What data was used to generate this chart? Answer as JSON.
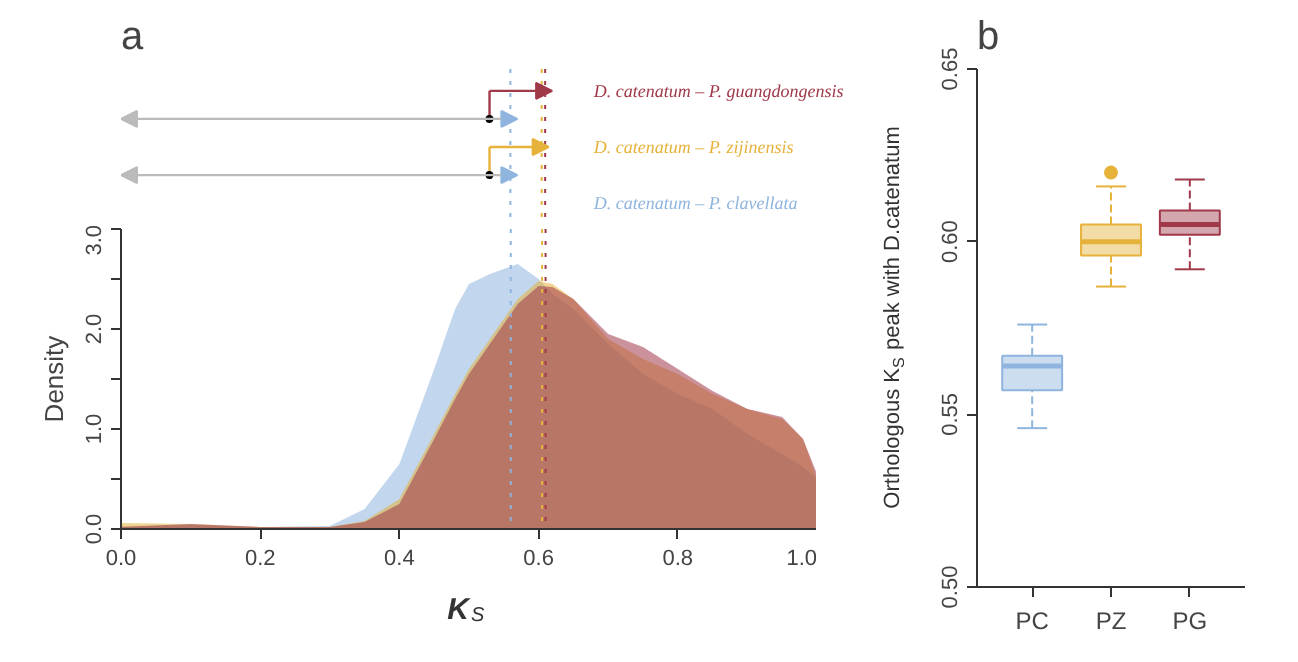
{
  "chart_data": [
    {
      "type": "area",
      "title": "a",
      "xlabel": "K$_{S}$",
      "ylabel": "Density",
      "grid": false,
      "x": [
        0,
        0.1,
        0.2,
        0.3,
        0.35,
        0.4,
        0.45,
        0.48,
        0.5,
        0.53,
        0.57,
        0.6,
        0.62,
        0.65,
        0.7,
        0.75,
        0.8,
        0.85,
        0.9,
        0.95,
        0.98,
        1.0
      ],
      "xlim": [
        0,
        1
      ],
      "xticks": [
        {
          "value": 0,
          "label": "0.0"
        },
        0.2,
        0.4,
        0.6,
        0.8,
        {
          "value": 1,
          "label": "1.0"
        }
      ],
      "ylim": [
        0,
        3
      ],
      "yticks": [
        {
          "value": 0,
          "label": "0.0"
        },
        {
          "value": 0.5,
          "label": null
        },
        {
          "value": 1,
          "label": "1.0"
        },
        {
          "value": 1.5,
          "label": null
        },
        {
          "value": 2,
          "label": "2.0"
        },
        {
          "value": 2.5,
          "label": null
        },
        {
          "value": 3,
          "label": "3.0"
        }
      ],
      "series": [
        {
          "name": "D. catenatum – P. guangdongensis",
          "color": "#a0394a",
          "values": [
            0.02,
            0.05,
            0.02,
            0.02,
            0.07,
            0.25,
            0.9,
            1.3,
            1.55,
            1.85,
            2.25,
            2.43,
            2.42,
            2.3,
            1.95,
            1.82,
            1.6,
            1.38,
            1.2,
            1.12,
            0.9,
            0.55
          ]
        },
        {
          "name": "D. catenatum – P. zijinensis",
          "color": "#e6b23a",
          "values": [
            0.06,
            0.05,
            0.02,
            0.02,
            0.08,
            0.3,
            0.95,
            1.35,
            1.6,
            1.9,
            2.3,
            2.48,
            2.45,
            2.3,
            1.9,
            1.7,
            1.55,
            1.35,
            1.2,
            1.1,
            0.9,
            0.5
          ]
        },
        {
          "name": "D. catenatum – P. clavellata",
          "color": "#8fb4de",
          "values": [
            0.03,
            0.04,
            0.02,
            0.03,
            0.2,
            0.65,
            1.6,
            2.2,
            2.45,
            2.55,
            2.65,
            2.5,
            2.35,
            2.2,
            1.85,
            1.55,
            1.35,
            1.2,
            0.95,
            0.75,
            0.62,
            0.5
          ]
        }
      ],
      "ref_lines": [
        {
          "axis": "x",
          "value": 0.56,
          "color": "#8fb4de",
          "line_style": "dotted"
        },
        {
          "axis": "x",
          "value": 0.605,
          "color": "#e6b23a",
          "line_style": "dotted"
        },
        {
          "axis": "x",
          "value": 0.61,
          "color": "#a0394a",
          "line_style": "dotted"
        }
      ]
    },
    {
      "type": "box",
      "title": "b",
      "ylabel": "Orthologous K$_{S}$ peak with D.catenatum",
      "grid": false,
      "categories": [
        "PC",
        "PZ",
        "PG"
      ],
      "colors": [
        "#8fb4de",
        "#e6b23a",
        "#a0394a"
      ],
      "ylim": [
        0.5,
        0.65
      ],
      "yticks": [
        {
          "value": 0.5,
          "label": "0.50"
        },
        0.55,
        {
          "value": 0.6,
          "label": "0.60"
        },
        0.65
      ],
      "boxes": [
        {
          "low": 0.546,
          "q1": 0.557,
          "median": 0.564,
          "q3": 0.567,
          "high": 0.576
        },
        {
          "low": 0.587,
          "q1": 0.596,
          "median": 0.6,
          "q3": 0.605,
          "high": 0.616,
          "outliers": [
            0.62
          ]
        },
        {
          "low": 0.592,
          "q1": 0.602,
          "median": 0.605,
          "q3": 0.609,
          "high": 0.618
        }
      ]
    }
  ]
}
